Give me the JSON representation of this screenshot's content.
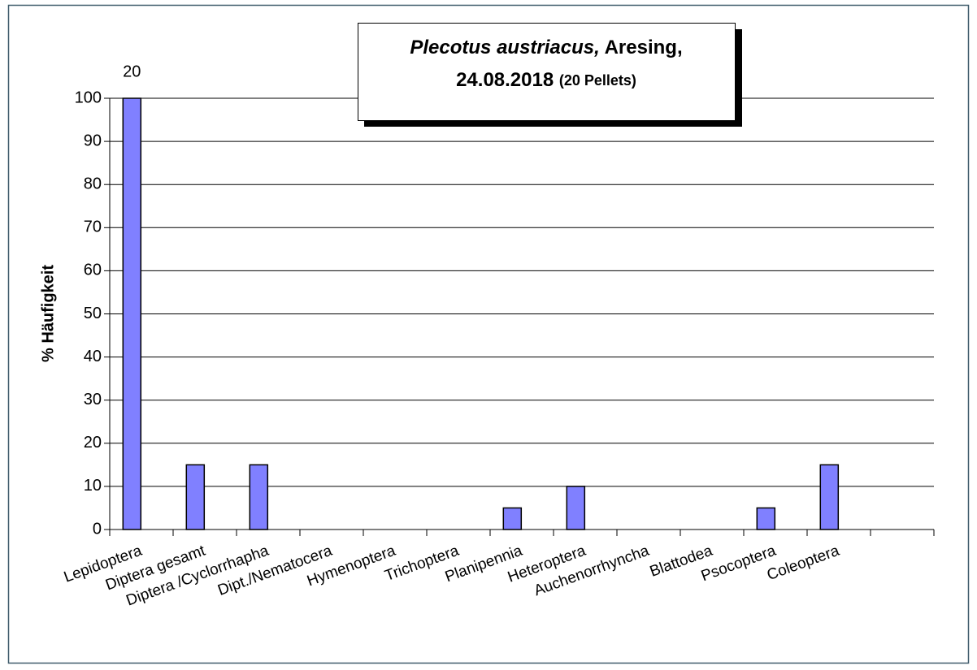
{
  "chart_data": {
    "type": "bar",
    "title": [
      "Plecotus austriacus,",
      "Aresing,",
      "24.08.2018",
      "(20 Pellets)"
    ],
    "ylabel": "% Häufigkeit",
    "annotation": "20",
    "categories": [
      "Lepidoptera",
      "Diptera gesamt",
      "Diptera /Cyclorrhapha",
      "Dipt./Nematocera",
      "Hymenoptera",
      "Trichoptera",
      "Planipennia",
      "Heteroptera",
      "Auchenorrhyncha",
      "Blattodea",
      "Psocoptera",
      "Coleoptera",
      null
    ],
    "values": [
      100,
      15,
      15,
      0,
      0,
      0,
      5,
      10,
      0,
      0,
      5,
      15,
      null
    ],
    "color": "#8080ff",
    "ylim": [
      0,
      100
    ],
    "yticks": [
      0,
      10,
      20,
      30,
      40,
      50,
      60,
      70,
      80,
      90,
      100
    ],
    "grid": true
  }
}
